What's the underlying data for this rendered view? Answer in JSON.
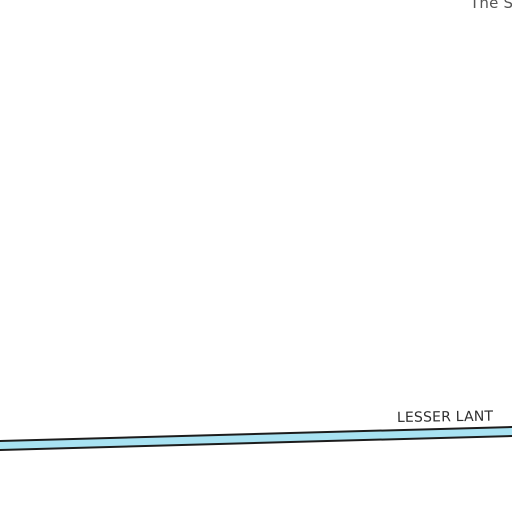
{
  "map": {
    "labels": {
      "corner_place": "The S",
      "road_name": "LESSER LANT"
    },
    "colors": {
      "background": "#ffffff",
      "road_fill": "#a8e2f2",
      "road_outline": "#1c1c1c",
      "label_text": "#3a3a3a"
    }
  }
}
